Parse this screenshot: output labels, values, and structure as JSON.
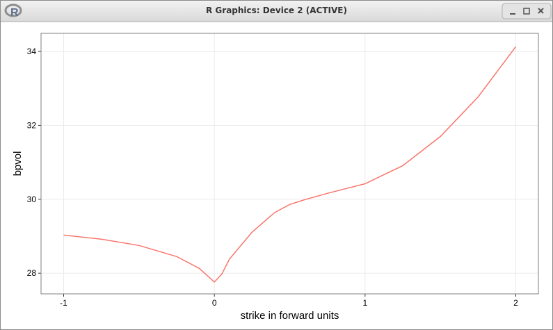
{
  "window": {
    "title": "R Graphics: Device 2 (ACTIVE)"
  },
  "chart_data": {
    "type": "line",
    "x_label": "strike in forward units",
    "y_label": "bpvol",
    "x": [
      -1,
      -0.75,
      -0.5,
      -0.25,
      -0.1,
      0,
      0.05,
      0.1,
      0.25,
      0.4,
      0.5,
      0.6,
      0.75,
      1.0,
      1.25,
      1.5,
      1.75,
      2.0
    ],
    "series": [
      {
        "color": "#F8766D",
        "values": [
          29.03,
          28.92,
          28.75,
          28.45,
          28.13,
          27.76,
          27.98,
          28.38,
          29.11,
          29.64,
          29.86,
          29.99,
          30.16,
          30.42,
          30.91,
          31.7,
          32.77,
          34.13
        ]
      }
    ],
    "xlim": [
      -1.15,
      2.15
    ],
    "ylim": [
      27.44,
      34.49
    ],
    "xticks": [
      -1,
      0,
      1,
      2
    ],
    "yticks": [
      28,
      30,
      32,
      34
    ],
    "grid": true
  }
}
